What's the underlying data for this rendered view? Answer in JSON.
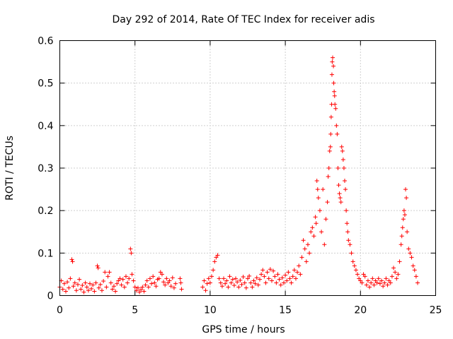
{
  "chart_data": {
    "type": "scatter",
    "title": "Day 292 of 2014, Rate Of TEC Index for receiver adis",
    "xlabel": "GPS time / hours",
    "ylabel": "ROTI / TECUs",
    "xlim": [
      0,
      25
    ],
    "ylim": [
      0,
      0.6
    ],
    "x_ticks": [
      0,
      5,
      10,
      15,
      20,
      25
    ],
    "x_tick_labels": [
      "0",
      "5",
      "10",
      "15",
      "20",
      "25"
    ],
    "y_ticks": [
      0,
      0.1,
      0.2,
      0.3,
      0.4,
      0.5,
      0.6
    ],
    "y_tick_labels": [
      "0",
      "0.1",
      "0.2",
      "0.3",
      "0.4",
      "0.5",
      "0.6"
    ],
    "grid": true,
    "marker": "+",
    "marker_color": "#ff0000",
    "series": [
      {
        "name": "ROTI",
        "points": [
          [
            0.0,
            0.02
          ],
          [
            0.1,
            0.035
          ],
          [
            0.2,
            0.015
          ],
          [
            0.3,
            0.028
          ],
          [
            0.4,
            0.01
          ],
          [
            0.5,
            0.032
          ],
          [
            0.6,
            0.018
          ],
          [
            0.7,
            0.04
          ],
          [
            0.8,
            0.085
          ],
          [
            0.85,
            0.08
          ],
          [
            0.9,
            0.022
          ],
          [
            1.0,
            0.03
          ],
          [
            1.1,
            0.012
          ],
          [
            1.2,
            0.026
          ],
          [
            1.3,
            0.038
          ],
          [
            1.4,
            0.015
          ],
          [
            1.5,
            0.024
          ],
          [
            1.6,
            0.008
          ],
          [
            1.7,
            0.03
          ],
          [
            1.8,
            0.02
          ],
          [
            1.9,
            0.012
          ],
          [
            2.0,
            0.028
          ],
          [
            2.1,
            0.016
          ],
          [
            2.2,
            0.025
          ],
          [
            2.3,
            0.01
          ],
          [
            2.4,
            0.03
          ],
          [
            2.5,
            0.07
          ],
          [
            2.55,
            0.065
          ],
          [
            2.6,
            0.018
          ],
          [
            2.7,
            0.026
          ],
          [
            2.8,
            0.012
          ],
          [
            2.9,
            0.034
          ],
          [
            3.0,
            0.055
          ],
          [
            3.1,
            0.02
          ],
          [
            3.2,
            0.045
          ],
          [
            3.3,
            0.055
          ],
          [
            3.4,
            0.03
          ],
          [
            3.5,
            0.015
          ],
          [
            3.6,
            0.022
          ],
          [
            3.7,
            0.01
          ],
          [
            3.8,
            0.028
          ],
          [
            3.9,
            0.035
          ],
          [
            4.0,
            0.04
          ],
          [
            4.1,
            0.025
          ],
          [
            4.2,
            0.038
          ],
          [
            4.3,
            0.02
          ],
          [
            4.4,
            0.045
          ],
          [
            4.5,
            0.03
          ],
          [
            4.6,
            0.04
          ],
          [
            4.7,
            0.11
          ],
          [
            4.75,
            0.1
          ],
          [
            4.8,
            0.05
          ],
          [
            4.9,
            0.035
          ],
          [
            5.0,
            0.02
          ],
          [
            5.1,
            0.012
          ],
          [
            5.2,
            0.018
          ],
          [
            5.3,
            0.008
          ],
          [
            5.4,
            0.014
          ],
          [
            5.5,
            0.02
          ],
          [
            5.6,
            0.01
          ],
          [
            5.7,
            0.025
          ],
          [
            5.8,
            0.035
          ],
          [
            5.9,
            0.02
          ],
          [
            6.0,
            0.04
          ],
          [
            6.1,
            0.028
          ],
          [
            6.2,
            0.045
          ],
          [
            6.3,
            0.03
          ],
          [
            6.4,
            0.022
          ],
          [
            6.5,
            0.038
          ],
          [
            6.6,
            0.04
          ],
          [
            6.7,
            0.055
          ],
          [
            6.8,
            0.05
          ],
          [
            6.9,
            0.032
          ],
          [
            7.0,
            0.025
          ],
          [
            7.1,
            0.04
          ],
          [
            7.2,
            0.03
          ],
          [
            7.3,
            0.035
          ],
          [
            7.4,
            0.022
          ],
          [
            7.5,
            0.042
          ],
          [
            7.6,
            0.018
          ],
          [
            7.7,
            0.028
          ],
          [
            8.0,
            0.04
          ],
          [
            8.05,
            0.03
          ],
          [
            8.1,
            0.015
          ],
          [
            9.5,
            0.02
          ],
          [
            9.6,
            0.035
          ],
          [
            9.7,
            0.012
          ],
          [
            9.8,
            0.028
          ],
          [
            9.9,
            0.04
          ],
          [
            10.0,
            0.03
          ],
          [
            10.1,
            0.045
          ],
          [
            10.2,
            0.06
          ],
          [
            10.3,
            0.08
          ],
          [
            10.4,
            0.09
          ],
          [
            10.5,
            0.095
          ],
          [
            10.6,
            0.04
          ],
          [
            10.7,
            0.03
          ],
          [
            10.8,
            0.022
          ],
          [
            10.9,
            0.04
          ],
          [
            11.0,
            0.028
          ],
          [
            11.1,
            0.035
          ],
          [
            11.2,
            0.02
          ],
          [
            11.3,
            0.045
          ],
          [
            11.4,
            0.03
          ],
          [
            11.5,
            0.038
          ],
          [
            11.6,
            0.024
          ],
          [
            11.7,
            0.04
          ],
          [
            11.8,
            0.032
          ],
          [
            11.9,
            0.02
          ],
          [
            12.0,
            0.036
          ],
          [
            12.1,
            0.026
          ],
          [
            12.2,
            0.044
          ],
          [
            12.3,
            0.03
          ],
          [
            12.4,
            0.018
          ],
          [
            12.5,
            0.04
          ],
          [
            12.6,
            0.046
          ],
          [
            12.7,
            0.03
          ],
          [
            12.8,
            0.02
          ],
          [
            12.9,
            0.035
          ],
          [
            13.0,
            0.028
          ],
          [
            13.1,
            0.042
          ],
          [
            13.2,
            0.025
          ],
          [
            13.3,
            0.038
          ],
          [
            13.4,
            0.05
          ],
          [
            13.5,
            0.06
          ],
          [
            13.6,
            0.045
          ],
          [
            13.7,
            0.03
          ],
          [
            13.8,
            0.055
          ],
          [
            13.9,
            0.04
          ],
          [
            14.0,
            0.062
          ],
          [
            14.1,
            0.035
          ],
          [
            14.2,
            0.058
          ],
          [
            14.3,
            0.045
          ],
          [
            14.4,
            0.03
          ],
          [
            14.5,
            0.05
          ],
          [
            14.6,
            0.038
          ],
          [
            14.7,
            0.025
          ],
          [
            14.8,
            0.042
          ],
          [
            14.9,
            0.03
          ],
          [
            15.0,
            0.048
          ],
          [
            15.1,
            0.035
          ],
          [
            15.2,
            0.055
          ],
          [
            15.3,
            0.04
          ],
          [
            15.4,
            0.03
          ],
          [
            15.5,
            0.045
          ],
          [
            15.6,
            0.06
          ],
          [
            15.7,
            0.04
          ],
          [
            15.8,
            0.055
          ],
          [
            15.9,
            0.07
          ],
          [
            16.0,
            0.05
          ],
          [
            16.1,
            0.09
          ],
          [
            16.2,
            0.13
          ],
          [
            16.3,
            0.11
          ],
          [
            16.4,
            0.08
          ],
          [
            16.5,
            0.12
          ],
          [
            16.6,
            0.1
          ],
          [
            16.7,
            0.15
          ],
          [
            16.8,
            0.16
          ],
          [
            16.9,
            0.14
          ],
          [
            17.0,
            0.185
          ],
          [
            17.05,
            0.17
          ],
          [
            17.1,
            0.27
          ],
          [
            17.15,
            0.25
          ],
          [
            17.2,
            0.23
          ],
          [
            17.3,
            0.2
          ],
          [
            17.4,
            0.15
          ],
          [
            17.5,
            0.25
          ],
          [
            17.6,
            0.12
          ],
          [
            17.7,
            0.18
          ],
          [
            17.8,
            0.22
          ],
          [
            17.85,
            0.28
          ],
          [
            17.9,
            0.3
          ],
          [
            17.95,
            0.34
          ],
          [
            18.0,
            0.35
          ],
          [
            18.02,
            0.38
          ],
          [
            18.05,
            0.42
          ],
          [
            18.08,
            0.45
          ],
          [
            18.1,
            0.52
          ],
          [
            18.12,
            0.55
          ],
          [
            18.15,
            0.56
          ],
          [
            18.2,
            0.54
          ],
          [
            18.22,
            0.5
          ],
          [
            18.25,
            0.48
          ],
          [
            18.28,
            0.47
          ],
          [
            18.3,
            0.45
          ],
          [
            18.35,
            0.44
          ],
          [
            18.4,
            0.4
          ],
          [
            18.45,
            0.38
          ],
          [
            18.5,
            0.3
          ],
          [
            18.55,
            0.26
          ],
          [
            18.6,
            0.24
          ],
          [
            18.65,
            0.23
          ],
          [
            18.7,
            0.22
          ],
          [
            18.75,
            0.35
          ],
          [
            18.8,
            0.34
          ],
          [
            18.85,
            0.32
          ],
          [
            18.9,
            0.3
          ],
          [
            18.95,
            0.27
          ],
          [
            19.0,
            0.25
          ],
          [
            19.05,
            0.2
          ],
          [
            19.1,
            0.17
          ],
          [
            19.15,
            0.15
          ],
          [
            19.2,
            0.13
          ],
          [
            19.3,
            0.12
          ],
          [
            19.4,
            0.1
          ],
          [
            19.5,
            0.08
          ],
          [
            19.6,
            0.07
          ],
          [
            19.7,
            0.06
          ],
          [
            19.8,
            0.05
          ],
          [
            19.9,
            0.04
          ],
          [
            20.0,
            0.035
          ],
          [
            20.1,
            0.03
          ],
          [
            20.2,
            0.05
          ],
          [
            20.3,
            0.045
          ],
          [
            20.4,
            0.025
          ],
          [
            20.5,
            0.035
          ],
          [
            20.6,
            0.02
          ],
          [
            20.7,
            0.03
          ],
          [
            20.8,
            0.04
          ],
          [
            20.9,
            0.025
          ],
          [
            21.0,
            0.035
          ],
          [
            21.1,
            0.03
          ],
          [
            21.2,
            0.04
          ],
          [
            21.3,
            0.028
          ],
          [
            21.4,
            0.035
          ],
          [
            21.5,
            0.022
          ],
          [
            21.6,
            0.03
          ],
          [
            21.7,
            0.04
          ],
          [
            21.8,
            0.025
          ],
          [
            21.9,
            0.035
          ],
          [
            22.0,
            0.03
          ],
          [
            22.1,
            0.045
          ],
          [
            22.2,
            0.065
          ],
          [
            22.3,
            0.055
          ],
          [
            22.4,
            0.04
          ],
          [
            22.5,
            0.05
          ],
          [
            22.6,
            0.08
          ],
          [
            22.7,
            0.12
          ],
          [
            22.75,
            0.14
          ],
          [
            22.8,
            0.16
          ],
          [
            22.85,
            0.18
          ],
          [
            22.9,
            0.2
          ],
          [
            22.95,
            0.19
          ],
          [
            23.0,
            0.25
          ],
          [
            23.05,
            0.23
          ],
          [
            23.1,
            0.15
          ],
          [
            23.2,
            0.11
          ],
          [
            23.3,
            0.1
          ],
          [
            23.4,
            0.09
          ],
          [
            23.5,
            0.07
          ],
          [
            23.6,
            0.06
          ],
          [
            23.7,
            0.045
          ],
          [
            23.8,
            0.03
          ]
        ]
      }
    ]
  }
}
